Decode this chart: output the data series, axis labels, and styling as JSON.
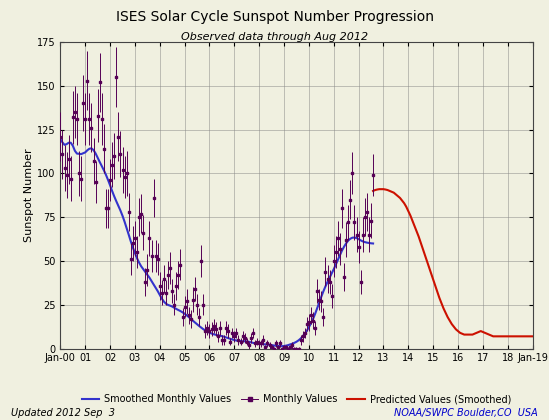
{
  "title": "ISES Solar Cycle Sunspot Number Progression",
  "subtitle": "Observed data through Aug 2012",
  "ylabel": "Sunspot Number",
  "footer_left": "Updated 2012 Sep  3",
  "footer_right": "NOAA/SWPC Boulder,CO  USA",
  "ylim": [
    0,
    175
  ],
  "yticks": [
    0,
    25,
    50,
    75,
    100,
    125,
    150,
    175
  ],
  "background_color": "#f0f0e0",
  "smoothed_color": "#3333cc",
  "monthly_color": "#550055",
  "predicted_color": "#cc1100",
  "legend_entries": [
    "Smoothed Monthly Values",
    "Monthly Values",
    "Predicted Values (Smoothed)"
  ],
  "smoothed_data": [
    [
      2000,
      1,
      119.7
    ],
    [
      2000,
      2,
      117.7
    ],
    [
      2000,
      3,
      116.3
    ],
    [
      2000,
      4,
      116.7
    ],
    [
      2000,
      5,
      117.5
    ],
    [
      2000,
      6,
      117.5
    ],
    [
      2000,
      7,
      115.8
    ],
    [
      2000,
      8,
      112.9
    ],
    [
      2000,
      9,
      111.3
    ],
    [
      2000,
      10,
      111.2
    ],
    [
      2000,
      11,
      111.0
    ],
    [
      2000,
      12,
      111.5
    ],
    [
      2001,
      1,
      112.0
    ],
    [
      2001,
      2,
      113.2
    ],
    [
      2001,
      3,
      114.1
    ],
    [
      2001,
      4,
      114.3
    ],
    [
      2001,
      5,
      113.3
    ],
    [
      2001,
      6,
      111.4
    ],
    [
      2001,
      7,
      108.9
    ],
    [
      2001,
      8,
      106.5
    ],
    [
      2001,
      9,
      104.2
    ],
    [
      2001,
      10,
      101.8
    ],
    [
      2001,
      11,
      99.2
    ],
    [
      2001,
      12,
      96.3
    ],
    [
      2002,
      1,
      93.2
    ],
    [
      2002,
      2,
      89.9
    ],
    [
      2002,
      3,
      86.9
    ],
    [
      2002,
      4,
      84.1
    ],
    [
      2002,
      5,
      81.5
    ],
    [
      2002,
      6,
      78.8
    ],
    [
      2002,
      7,
      75.8
    ],
    [
      2002,
      8,
      72.4
    ],
    [
      2002,
      9,
      68.8
    ],
    [
      2002,
      10,
      65.0
    ],
    [
      2002,
      11,
      61.2
    ],
    [
      2002,
      12,
      57.7
    ],
    [
      2003,
      1,
      54.5
    ],
    [
      2003,
      2,
      51.6
    ],
    [
      2003,
      3,
      49.1
    ],
    [
      2003,
      4,
      47.0
    ],
    [
      2003,
      5,
      45.4
    ],
    [
      2003,
      6,
      43.9
    ],
    [
      2003,
      7,
      42.3
    ],
    [
      2003,
      8,
      40.5
    ],
    [
      2003,
      9,
      38.6
    ],
    [
      2003,
      10,
      36.8
    ],
    [
      2003,
      11,
      34.9
    ],
    [
      2003,
      12,
      32.8
    ],
    [
      2004,
      1,
      30.6
    ],
    [
      2004,
      2,
      28.5
    ],
    [
      2004,
      3,
      26.8
    ],
    [
      2004,
      4,
      25.6
    ],
    [
      2004,
      5,
      24.9
    ],
    [
      2004,
      6,
      24.5
    ],
    [
      2004,
      7,
      24.0
    ],
    [
      2004,
      8,
      23.3
    ],
    [
      2004,
      9,
      22.6
    ],
    [
      2004,
      10,
      22.0
    ],
    [
      2004,
      11,
      21.4
    ],
    [
      2004,
      12,
      20.7
    ],
    [
      2005,
      1,
      19.9
    ],
    [
      2005,
      2,
      19.0
    ],
    [
      2005,
      3,
      18.0
    ],
    [
      2005,
      4,
      17.0
    ],
    [
      2005,
      5,
      15.9
    ],
    [
      2005,
      6,
      14.9
    ],
    [
      2005,
      7,
      13.9
    ],
    [
      2005,
      8,
      12.9
    ],
    [
      2005,
      9,
      12.0
    ],
    [
      2005,
      10,
      11.1
    ],
    [
      2005,
      11,
      10.4
    ],
    [
      2005,
      12,
      9.7
    ],
    [
      2006,
      1,
      9.1
    ],
    [
      2006,
      2,
      8.6
    ],
    [
      2006,
      3,
      8.2
    ],
    [
      2006,
      4,
      7.9
    ],
    [
      2006,
      5,
      7.6
    ],
    [
      2006,
      6,
      7.4
    ],
    [
      2006,
      7,
      7.1
    ],
    [
      2006,
      8,
      6.8
    ],
    [
      2006,
      9,
      6.4
    ],
    [
      2006,
      10,
      6.0
    ],
    [
      2006,
      11,
      5.6
    ],
    [
      2006,
      12,
      5.2
    ],
    [
      2007,
      1,
      4.9
    ],
    [
      2007,
      2,
      4.6
    ],
    [
      2007,
      3,
      4.4
    ],
    [
      2007,
      4,
      4.3
    ],
    [
      2007,
      5,
      4.2
    ],
    [
      2007,
      6,
      4.2
    ],
    [
      2007,
      7,
      4.1
    ],
    [
      2007,
      8,
      3.9
    ],
    [
      2007,
      9,
      3.6
    ],
    [
      2007,
      10,
      3.3
    ],
    [
      2007,
      11,
      3.0
    ],
    [
      2007,
      12,
      2.8
    ],
    [
      2008,
      1,
      2.7
    ],
    [
      2008,
      2,
      2.6
    ],
    [
      2008,
      3,
      2.5
    ],
    [
      2008,
      4,
      2.4
    ],
    [
      2008,
      5,
      2.3
    ],
    [
      2008,
      6,
      2.2
    ],
    [
      2008,
      7,
      2.0
    ],
    [
      2008,
      8,
      1.8
    ],
    [
      2008,
      9,
      1.6
    ],
    [
      2008,
      10,
      1.5
    ],
    [
      2008,
      11,
      1.4
    ],
    [
      2008,
      12,
      1.4
    ],
    [
      2009,
      1,
      1.5
    ],
    [
      2009,
      2,
      1.7
    ],
    [
      2009,
      3,
      2.0
    ],
    [
      2009,
      4,
      2.4
    ],
    [
      2009,
      5,
      2.8
    ],
    [
      2009,
      6,
      3.3
    ],
    [
      2009,
      7,
      3.9
    ],
    [
      2009,
      8,
      4.7
    ],
    [
      2009,
      9,
      5.7
    ],
    [
      2009,
      10,
      7.0
    ],
    [
      2009,
      11,
      8.5
    ],
    [
      2009,
      12,
      10.2
    ],
    [
      2010,
      1,
      12.2
    ],
    [
      2010,
      2,
      14.4
    ],
    [
      2010,
      3,
      16.9
    ],
    [
      2010,
      4,
      19.8
    ],
    [
      2010,
      5,
      23.0
    ],
    [
      2010,
      6,
      26.3
    ],
    [
      2010,
      7,
      29.6
    ],
    [
      2010,
      8,
      32.7
    ],
    [
      2010,
      9,
      35.5
    ],
    [
      2010,
      10,
      38.1
    ],
    [
      2010,
      11,
      40.5
    ],
    [
      2010,
      12,
      42.8
    ],
    [
      2011,
      1,
      45.3
    ],
    [
      2011,
      2,
      48.0
    ],
    [
      2011,
      3,
      50.8
    ],
    [
      2011,
      4,
      53.5
    ],
    [
      2011,
      5,
      56.0
    ],
    [
      2011,
      6,
      58.2
    ],
    [
      2011,
      7,
      60.1
    ],
    [
      2011,
      8,
      61.7
    ],
    [
      2011,
      9,
      62.7
    ],
    [
      2011,
      10,
      63.3
    ],
    [
      2011,
      11,
      63.4
    ],
    [
      2011,
      12,
      63.1
    ],
    [
      2012,
      1,
      62.5
    ],
    [
      2012,
      2,
      61.8
    ],
    [
      2012,
      3,
      61.2
    ],
    [
      2012,
      4,
      60.8
    ],
    [
      2012,
      5,
      60.5
    ],
    [
      2012,
      6,
      60.3
    ],
    [
      2012,
      7,
      60.1
    ],
    [
      2012,
      8,
      60.0
    ]
  ],
  "monthly_data": [
    [
      2000,
      1,
      121,
      14
    ],
    [
      2000,
      2,
      111,
      14
    ],
    [
      2000,
      3,
      103,
      13
    ],
    [
      2000,
      4,
      99,
      13
    ],
    [
      2000,
      5,
      108,
      14
    ],
    [
      2000,
      6,
      97,
      13
    ],
    [
      2000,
      7,
      132,
      15
    ],
    [
      2000,
      8,
      135,
      15
    ],
    [
      2000,
      9,
      131,
      15
    ],
    [
      2000,
      10,
      100,
      13
    ],
    [
      2000,
      11,
      97,
      13
    ],
    [
      2000,
      12,
      140,
      16
    ],
    [
      2001,
      1,
      131,
      15
    ],
    [
      2001,
      2,
      153,
      17
    ],
    [
      2001,
      3,
      131,
      15
    ],
    [
      2001,
      4,
      126,
      14
    ],
    [
      2001,
      5,
      107,
      13
    ],
    [
      2001,
      6,
      95,
      12
    ],
    [
      2001,
      7,
      133,
      15
    ],
    [
      2001,
      8,
      152,
      17
    ],
    [
      2001,
      9,
      131,
      15
    ],
    [
      2001,
      10,
      114,
      14
    ],
    [
      2001,
      11,
      80,
      11
    ],
    [
      2001,
      12,
      80,
      11
    ],
    [
      2002,
      1,
      96,
      12
    ],
    [
      2002,
      2,
      105,
      13
    ],
    [
      2002,
      3,
      110,
      13
    ],
    [
      2002,
      4,
      155,
      17
    ],
    [
      2002,
      5,
      121,
      14
    ],
    [
      2002,
      6,
      111,
      13
    ],
    [
      2002,
      7,
      102,
      13
    ],
    [
      2002,
      8,
      98,
      12
    ],
    [
      2002,
      9,
      100,
      13
    ],
    [
      2002,
      10,
      78,
      11
    ],
    [
      2002,
      11,
      51,
      9
    ],
    [
      2002,
      12,
      60,
      10
    ],
    [
      2003,
      1,
      63,
      10
    ],
    [
      2003,
      2,
      55,
      9
    ],
    [
      2003,
      3,
      75,
      11
    ],
    [
      2003,
      4,
      77,
      11
    ],
    [
      2003,
      5,
      66,
      10
    ],
    [
      2003,
      6,
      38,
      8
    ],
    [
      2003,
      7,
      45,
      9
    ],
    [
      2003,
      8,
      63,
      10
    ],
    [
      2003,
      9,
      53,
      9
    ],
    [
      2003,
      10,
      86,
      11
    ],
    [
      2003,
      11,
      53,
      9
    ],
    [
      2003,
      12,
      51,
      9
    ],
    [
      2004,
      1,
      36,
      8
    ],
    [
      2004,
      2,
      32,
      7
    ],
    [
      2004,
      3,
      40,
      8
    ],
    [
      2004,
      4,
      32,
      7
    ],
    [
      2004,
      5,
      42,
      8
    ],
    [
      2004,
      6,
      46,
      9
    ],
    [
      2004,
      7,
      33,
      7
    ],
    [
      2004,
      8,
      25,
      6
    ],
    [
      2004,
      9,
      36,
      8
    ],
    [
      2004,
      10,
      42,
      8
    ],
    [
      2004,
      11,
      48,
      9
    ],
    [
      2004,
      12,
      18,
      5
    ],
    [
      2005,
      1,
      24,
      6
    ],
    [
      2005,
      2,
      27,
      7
    ],
    [
      2005,
      3,
      19,
      5
    ],
    [
      2005,
      4,
      17,
      5
    ],
    [
      2005,
      5,
      28,
      7
    ],
    [
      2005,
      6,
      34,
      7
    ],
    [
      2005,
      7,
      25,
      6
    ],
    [
      2005,
      8,
      18,
      5
    ],
    [
      2005,
      9,
      50,
      9
    ],
    [
      2005,
      10,
      25,
      6
    ],
    [
      2005,
      11,
      10,
      4
    ],
    [
      2005,
      12,
      12,
      4
    ],
    [
      2006,
      1,
      10,
      4
    ],
    [
      2006,
      2,
      11,
      4
    ],
    [
      2006,
      3,
      13,
      4
    ],
    [
      2006,
      4,
      11,
      4
    ],
    [
      2006,
      5,
      7,
      3
    ],
    [
      2006,
      6,
      12,
      4
    ],
    [
      2006,
      7,
      5,
      3
    ],
    [
      2006,
      8,
      5,
      3
    ],
    [
      2006,
      9,
      12,
      4
    ],
    [
      2006,
      10,
      10,
      4
    ],
    [
      2006,
      11,
      4,
      2
    ],
    [
      2006,
      12,
      9,
      3
    ],
    [
      2007,
      1,
      7,
      3
    ],
    [
      2007,
      2,
      9,
      3
    ],
    [
      2007,
      3,
      5,
      3
    ],
    [
      2007,
      4,
      4,
      2
    ],
    [
      2007,
      5,
      7,
      3
    ],
    [
      2007,
      6,
      6,
      3
    ],
    [
      2007,
      7,
      4,
      2
    ],
    [
      2007,
      8,
      2,
      2
    ],
    [
      2007,
      9,
      6,
      3
    ],
    [
      2007,
      10,
      9,
      3
    ],
    [
      2007,
      11,
      3,
      2
    ],
    [
      2007,
      12,
      4,
      2
    ],
    [
      2008,
      1,
      3,
      2
    ],
    [
      2008,
      2,
      3,
      2
    ],
    [
      2008,
      3,
      5,
      3
    ],
    [
      2008,
      4,
      1,
      1
    ],
    [
      2008,
      5,
      3,
      2
    ],
    [
      2008,
      6,
      2,
      2
    ],
    [
      2008,
      7,
      1,
      1
    ],
    [
      2008,
      8,
      0,
      1
    ],
    [
      2008,
      9,
      3,
      2
    ],
    [
      2008,
      10,
      1,
      1
    ],
    [
      2008,
      11,
      3,
      2
    ],
    [
      2008,
      12,
      0,
      1
    ],
    [
      2009,
      1,
      1,
      1
    ],
    [
      2009,
      2,
      1,
      1
    ],
    [
      2009,
      3,
      0,
      1
    ],
    [
      2009,
      4,
      1,
      1
    ],
    [
      2009,
      5,
      2,
      2
    ],
    [
      2009,
      6,
      0,
      1
    ],
    [
      2009,
      7,
      0,
      1
    ],
    [
      2009,
      8,
      0,
      1
    ],
    [
      2009,
      9,
      5,
      3
    ],
    [
      2009,
      10,
      7,
      3
    ],
    [
      2009,
      11,
      9,
      3
    ],
    [
      2009,
      12,
      14,
      4
    ],
    [
      2010,
      1,
      15,
      5
    ],
    [
      2010,
      2,
      19,
      5
    ],
    [
      2010,
      3,
      16,
      5
    ],
    [
      2010,
      4,
      12,
      4
    ],
    [
      2010,
      5,
      33,
      7
    ],
    [
      2010,
      6,
      28,
      6
    ],
    [
      2010,
      7,
      27,
      6
    ],
    [
      2010,
      8,
      18,
      5
    ],
    [
      2010,
      9,
      44,
      8
    ],
    [
      2010,
      10,
      40,
      8
    ],
    [
      2010,
      11,
      38,
      7
    ],
    [
      2010,
      12,
      30,
      7
    ],
    [
      2011,
      1,
      50,
      9
    ],
    [
      2011,
      2,
      55,
      9
    ],
    [
      2011,
      3,
      63,
      10
    ],
    [
      2011,
      4,
      57,
      9
    ],
    [
      2011,
      5,
      80,
      11
    ],
    [
      2011,
      6,
      41,
      8
    ],
    [
      2011,
      7,
      62,
      10
    ],
    [
      2011,
      8,
      72,
      10
    ],
    [
      2011,
      9,
      85,
      11
    ],
    [
      2011,
      10,
      100,
      12
    ],
    [
      2011,
      11,
      72,
      10
    ],
    [
      2011,
      12,
      65,
      10
    ],
    [
      2012,
      1,
      58,
      9
    ],
    [
      2012,
      2,
      38,
      7
    ],
    [
      2012,
      3,
      65,
      10
    ],
    [
      2012,
      4,
      75,
      11
    ],
    [
      2012,
      5,
      78,
      11
    ],
    [
      2012,
      6,
      65,
      10
    ],
    [
      2012,
      7,
      73,
      10
    ],
    [
      2012,
      8,
      99,
      12
    ]
  ],
  "predicted_data": [
    [
      2012,
      8,
      90
    ],
    [
      2012,
      9,
      90.5
    ],
    [
      2012,
      10,
      90.8
    ],
    [
      2012,
      11,
      91
    ],
    [
      2012,
      12,
      91
    ],
    [
      2013,
      1,
      91
    ],
    [
      2013,
      2,
      90.8
    ],
    [
      2013,
      3,
      90.5
    ],
    [
      2013,
      4,
      90
    ],
    [
      2013,
      5,
      89.5
    ],
    [
      2013,
      6,
      89
    ],
    [
      2013,
      7,
      88
    ],
    [
      2013,
      8,
      87
    ],
    [
      2013,
      9,
      86
    ],
    [
      2013,
      10,
      84.5
    ],
    [
      2013,
      11,
      83
    ],
    [
      2013,
      12,
      81
    ],
    [
      2014,
      1,
      78.5
    ],
    [
      2014,
      2,
      76
    ],
    [
      2014,
      3,
      73
    ],
    [
      2014,
      4,
      70
    ],
    [
      2014,
      5,
      67
    ],
    [
      2014,
      6,
      64
    ],
    [
      2014,
      7,
      60.5
    ],
    [
      2014,
      8,
      57
    ],
    [
      2014,
      9,
      53.5
    ],
    [
      2014,
      10,
      50
    ],
    [
      2014,
      11,
      46.5
    ],
    [
      2014,
      12,
      43
    ],
    [
      2015,
      1,
      39.5
    ],
    [
      2015,
      2,
      36
    ],
    [
      2015,
      3,
      32.5
    ],
    [
      2015,
      4,
      29
    ],
    [
      2015,
      5,
      26
    ],
    [
      2015,
      6,
      23
    ],
    [
      2015,
      7,
      20.5
    ],
    [
      2015,
      8,
      18
    ],
    [
      2015,
      9,
      16
    ],
    [
      2015,
      10,
      14
    ],
    [
      2015,
      11,
      12.5
    ],
    [
      2015,
      12,
      11
    ],
    [
      2016,
      1,
      10
    ],
    [
      2016,
      2,
      9
    ],
    [
      2016,
      3,
      8.5
    ],
    [
      2016,
      4,
      8
    ],
    [
      2016,
      5,
      8
    ],
    [
      2016,
      6,
      8
    ],
    [
      2016,
      7,
      8
    ],
    [
      2016,
      8,
      8
    ],
    [
      2016,
      9,
      8.5
    ],
    [
      2016,
      10,
      9
    ],
    [
      2016,
      11,
      9.5
    ],
    [
      2016,
      12,
      10
    ],
    [
      2017,
      1,
      9.5
    ],
    [
      2017,
      2,
      9
    ],
    [
      2017,
      3,
      8.5
    ],
    [
      2017,
      4,
      8
    ],
    [
      2017,
      5,
      7.5
    ],
    [
      2017,
      6,
      7
    ],
    [
      2017,
      7,
      7
    ],
    [
      2017,
      8,
      7
    ],
    [
      2017,
      9,
      7
    ],
    [
      2017,
      10,
      7
    ],
    [
      2017,
      11,
      7
    ],
    [
      2017,
      12,
      7
    ],
    [
      2018,
      1,
      7
    ],
    [
      2018,
      2,
      7
    ],
    [
      2018,
      3,
      7
    ],
    [
      2018,
      4,
      7
    ],
    [
      2018,
      5,
      7
    ],
    [
      2018,
      6,
      7
    ],
    [
      2018,
      7,
      7
    ],
    [
      2018,
      8,
      7
    ],
    [
      2018,
      9,
      7
    ],
    [
      2018,
      10,
      7
    ],
    [
      2018,
      11,
      7
    ],
    [
      2018,
      12,
      7
    ],
    [
      2019,
      1,
      7
    ]
  ]
}
